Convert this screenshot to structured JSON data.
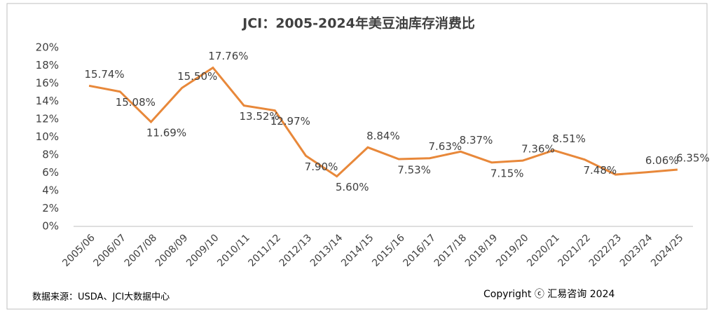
{
  "chart_data": {
    "type": "line",
    "title": "JCI：2005-2024年美豆油库存消费比",
    "categories": [
      "2005/06",
      "2006/07",
      "2007/08",
      "2008/09",
      "2009/10",
      "2010/11",
      "2011/12",
      "2012/13",
      "2013/14",
      "2014/15",
      "2015/16",
      "2016/17",
      "2017/18",
      "2018/19",
      "2019/20",
      "2020/21",
      "2021/22",
      "2022/23",
      "2023/24",
      "2024/25"
    ],
    "series": [
      {
        "name": "库存消费比",
        "color": "#e8883a",
        "values": [
          15.74,
          15.08,
          11.69,
          15.5,
          17.76,
          13.52,
          12.97,
          7.9,
          5.6,
          8.84,
          7.53,
          7.63,
          8.37,
          7.15,
          7.36,
          8.51,
          7.48,
          5.8,
          6.06,
          6.35
        ],
        "value_labels": [
          "15.74%",
          "15.08%",
          "11.69%",
          "15.50%",
          "17.76%",
          "13.52%",
          "12.97%",
          "7.90%",
          "5.60%",
          "8.84%",
          "7.53%",
          "7.63%",
          "8.37%",
          "7.15%",
          "7.36%",
          "8.51%",
          "7.48%",
          null,
          "6.06%",
          "6.35%"
        ]
      }
    ],
    "ylim": [
      0,
      20
    ],
    "yticks": [
      {
        "value": 0,
        "label": "0%"
      },
      {
        "value": 2,
        "label": "2%"
      },
      {
        "value": 4,
        "label": "4%"
      },
      {
        "value": 6,
        "label": "6%"
      },
      {
        "value": 8,
        "label": "8%"
      },
      {
        "value": 10,
        "label": "10%"
      },
      {
        "value": 12,
        "label": "12%"
      },
      {
        "value": 14,
        "label": "14%"
      },
      {
        "value": 16,
        "label": "16%"
      },
      {
        "value": 18,
        "label": "18%"
      },
      {
        "value": 20,
        "label": "20%"
      }
    ],
    "grid": false,
    "source": "数据来源：USDA、JCI大数据中心",
    "copyright": "Copyright ⓒ 汇易咨询 2024"
  }
}
